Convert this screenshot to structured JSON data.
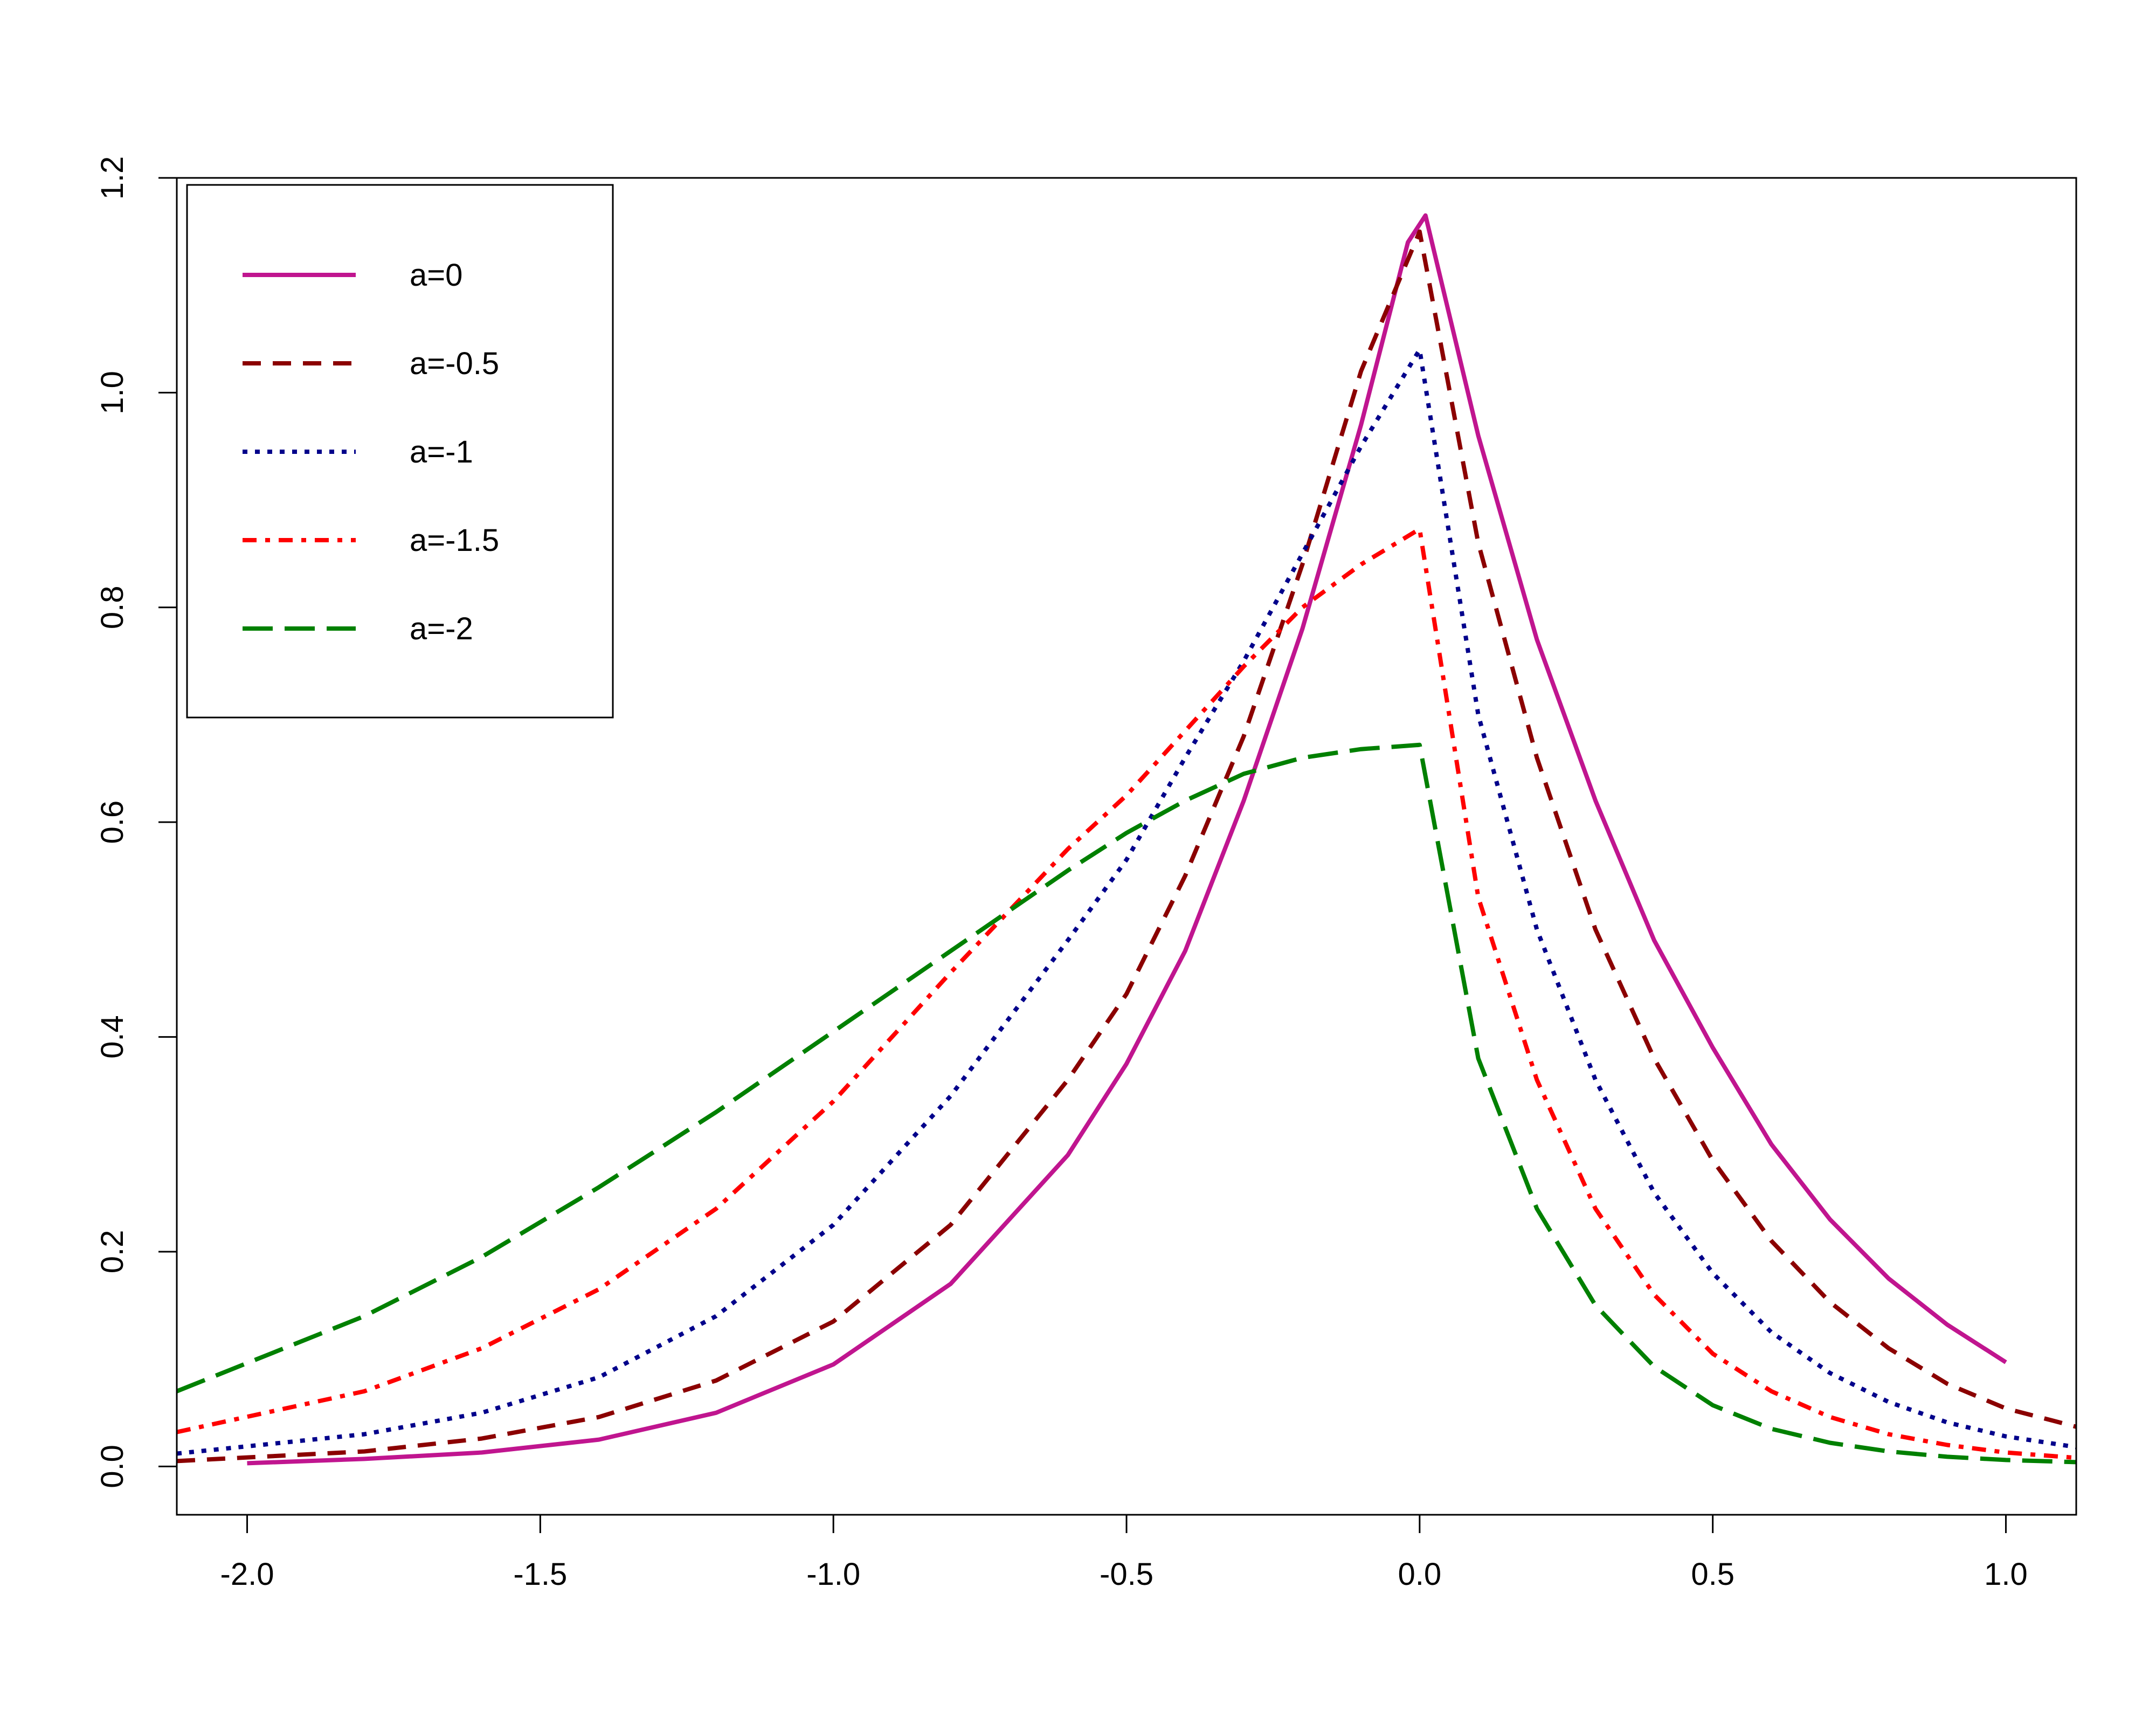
{
  "chart_data": {
    "type": "line",
    "title": "",
    "xlabel": "",
    "ylabel": "",
    "xlim": [
      -2.12,
      1.12
    ],
    "ylim": [
      -0.045,
      1.2
    ],
    "xticks": [
      -2.0,
      -1.5,
      -1.0,
      -0.5,
      0.0,
      0.5,
      1.0
    ],
    "xtick_labels": [
      "-2.0",
      "-1.5",
      "-1.0",
      "-0.5",
      "0.0",
      "0.5",
      "1.0"
    ],
    "yticks": [
      0.0,
      0.2,
      0.4,
      0.6,
      0.8,
      1.0,
      1.2
    ],
    "ytick_labels": [
      "0.0",
      "0.2",
      "0.4",
      "0.6",
      "0.8",
      "1.0",
      "1.2"
    ],
    "grid": false,
    "legend_position": "top-left",
    "series": [
      {
        "name": "a=0",
        "color": "#c0158f",
        "dash": "solid",
        "x": [
          -2.0,
          -1.8,
          -1.6,
          -1.4,
          -1.2,
          -1.0,
          -0.8,
          -0.6,
          -0.5,
          -0.4,
          -0.3,
          -0.2,
          -0.1,
          -0.02,
          0.01,
          0.1,
          0.2,
          0.3,
          0.4,
          0.5,
          0.6,
          0.7,
          0.8,
          0.9,
          1.0
        ],
        "y": [
          0.003,
          0.007,
          0.013,
          0.025,
          0.05,
          0.095,
          0.17,
          0.29,
          0.375,
          0.48,
          0.62,
          0.78,
          0.97,
          1.14,
          1.165,
          0.96,
          0.77,
          0.62,
          0.49,
          0.39,
          0.3,
          0.23,
          0.175,
          0.132,
          0.097
        ]
      },
      {
        "name": "a=-0.5",
        "color": "#8b0000",
        "dash": "dashed",
        "x": [
          -2.12,
          -1.8,
          -1.6,
          -1.4,
          -1.2,
          -1.0,
          -0.8,
          -0.6,
          -0.5,
          -0.4,
          -0.3,
          -0.2,
          -0.1,
          0.0,
          0.1,
          0.2,
          0.3,
          0.4,
          0.5,
          0.6,
          0.7,
          0.8,
          0.9,
          1.0,
          1.12
        ],
        "y": [
          0.005,
          0.014,
          0.026,
          0.046,
          0.08,
          0.135,
          0.225,
          0.36,
          0.44,
          0.55,
          0.68,
          0.84,
          1.02,
          1.15,
          0.86,
          0.66,
          0.5,
          0.38,
          0.285,
          0.21,
          0.153,
          0.11,
          0.077,
          0.054,
          0.037
        ]
      },
      {
        "name": "a=-1",
        "color": "#00008b",
        "dash": "dotted",
        "x": [
          -2.12,
          -1.8,
          -1.6,
          -1.4,
          -1.2,
          -1.0,
          -0.8,
          -0.6,
          -0.5,
          -0.4,
          -0.3,
          -0.2,
          -0.1,
          0.0,
          0.1,
          0.2,
          0.3,
          0.4,
          0.5,
          0.6,
          0.7,
          0.8,
          0.9,
          1.0,
          1.12
        ],
        "y": [
          0.012,
          0.03,
          0.05,
          0.083,
          0.14,
          0.225,
          0.345,
          0.49,
          0.565,
          0.66,
          0.75,
          0.85,
          0.95,
          1.04,
          0.7,
          0.5,
          0.36,
          0.255,
          0.18,
          0.125,
          0.087,
          0.06,
          0.041,
          0.028,
          0.018
        ]
      },
      {
        "name": "a=-1.5",
        "color": "#ff0000",
        "dash": "dashdot",
        "x": [
          -2.12,
          -1.8,
          -1.6,
          -1.4,
          -1.2,
          -1.0,
          -0.8,
          -0.6,
          -0.5,
          -0.4,
          -0.3,
          -0.2,
          -0.1,
          0.0,
          0.1,
          0.2,
          0.3,
          0.4,
          0.5,
          0.6,
          0.7,
          0.8,
          0.9,
          1.0,
          1.12
        ],
        "y": [
          0.032,
          0.07,
          0.11,
          0.165,
          0.24,
          0.34,
          0.46,
          0.575,
          0.625,
          0.685,
          0.745,
          0.8,
          0.84,
          0.873,
          0.53,
          0.36,
          0.24,
          0.16,
          0.105,
          0.07,
          0.046,
          0.03,
          0.02,
          0.013,
          0.008
        ]
      },
      {
        "name": "a=-2",
        "color": "#008000",
        "dash": "longdash",
        "x": [
          -2.12,
          -1.8,
          -1.6,
          -1.4,
          -1.2,
          -1.0,
          -0.8,
          -0.6,
          -0.5,
          -0.4,
          -0.3,
          -0.2,
          -0.1,
          0.0,
          0.1,
          0.2,
          0.3,
          0.4,
          0.5,
          0.6,
          0.7,
          0.8,
          0.9,
          1.0,
          1.12
        ],
        "y": [
          0.07,
          0.14,
          0.195,
          0.26,
          0.33,
          0.405,
          0.48,
          0.555,
          0.59,
          0.62,
          0.645,
          0.66,
          0.668,
          0.672,
          0.38,
          0.24,
          0.15,
          0.093,
          0.057,
          0.035,
          0.022,
          0.014,
          0.009,
          0.006,
          0.004
        ]
      }
    ]
  }
}
